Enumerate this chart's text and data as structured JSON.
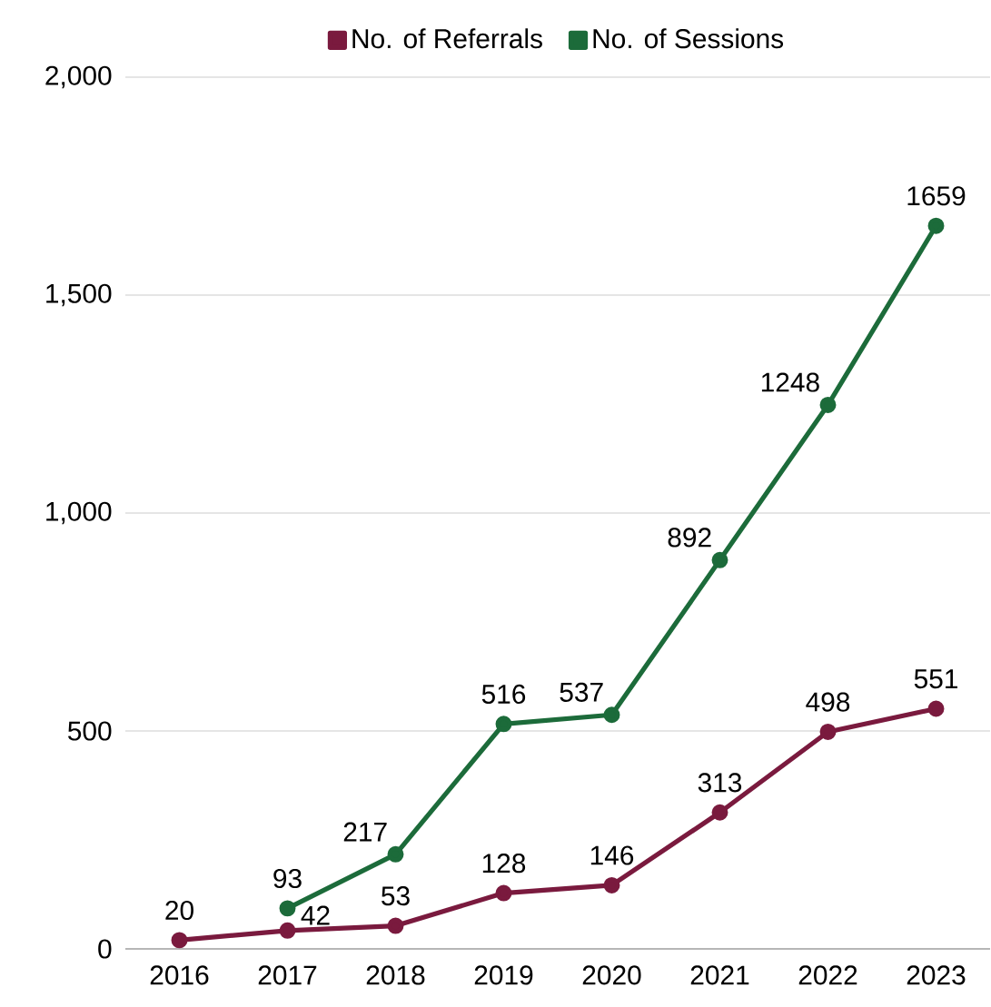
{
  "chart_data": {
    "type": "line",
    "categories": [
      "2016",
      "2017",
      "2018",
      "2019",
      "2020",
      "2021",
      "2022",
      "2023"
    ],
    "series": [
      {
        "name": "No. of Referrals",
        "color": "#7a1a3e",
        "values": [
          20,
          42,
          53,
          128,
          146,
          313,
          498,
          551
        ]
      },
      {
        "name": "No. of Sessions",
        "color": "#1c6b3a",
        "values": [
          null,
          93,
          217,
          516,
          537,
          892,
          1248,
          1659
        ]
      }
    ],
    "ylim": [
      0,
      2000
    ],
    "yticks": [
      0,
      {
        "value": 500,
        "label": "500"
      },
      {
        "value": 1000,
        "label": "1,000"
      },
      {
        "value": 1500,
        "label": "1,500"
      },
      {
        "value": 2000,
        "label": "2,000"
      }
    ],
    "grid": "y",
    "legend": "top",
    "marker": "circle",
    "line_style": "solid",
    "data_labels": true
  }
}
